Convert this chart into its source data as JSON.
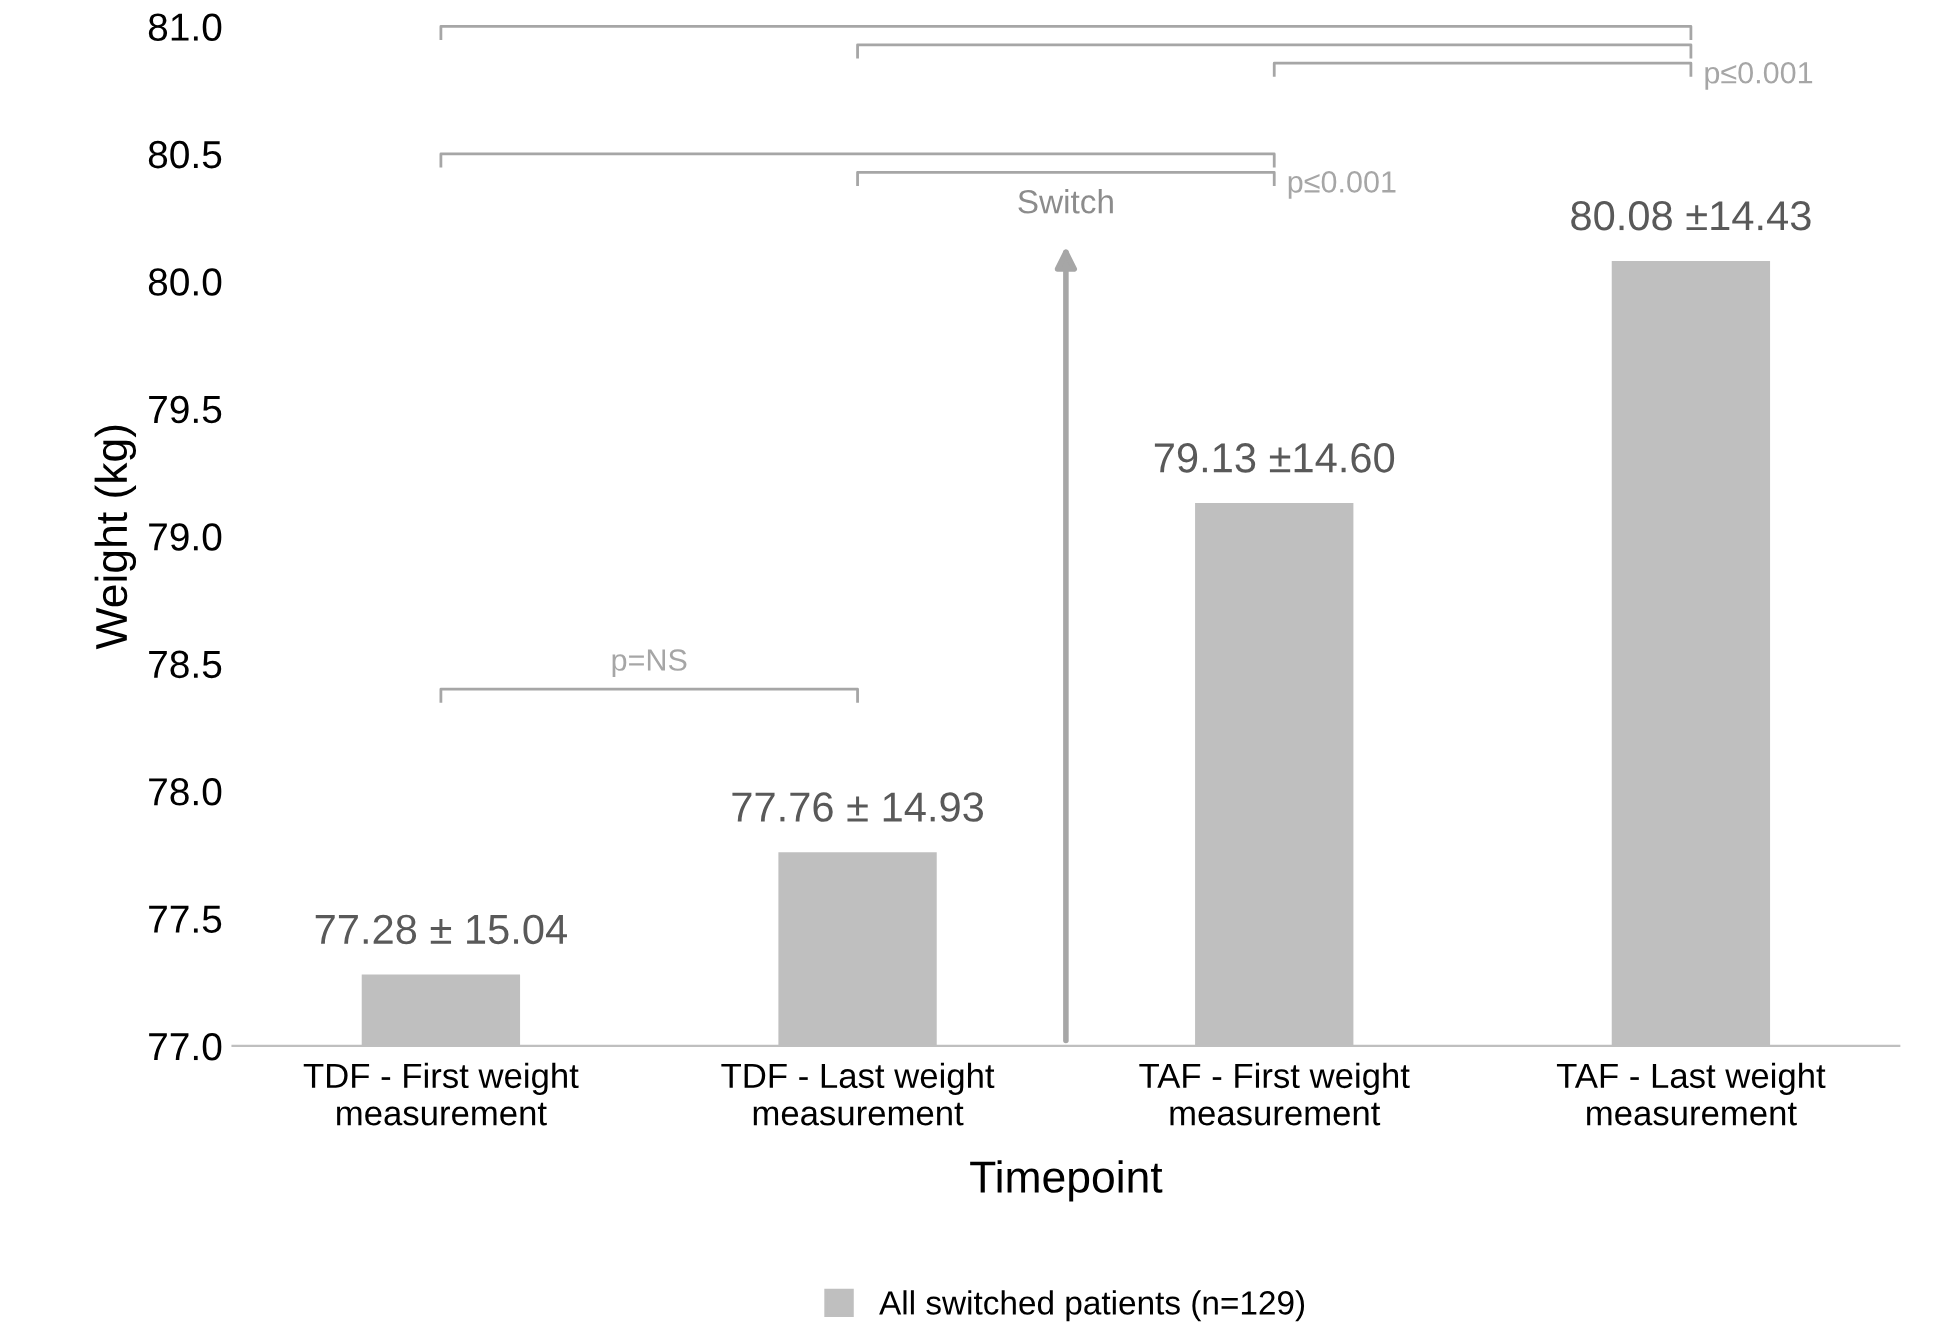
{
  "chart_data": {
    "type": "bar",
    "xlabel": "Timepoint",
    "ylabel": "Weight (kg)",
    "categories": [
      "TDF - First weight\nmeasurement",
      "TDF - Last weight\nmeasurement",
      "TAF - First weight\nmeasurement",
      "TAF - Last weight\nmeasurement"
    ],
    "series": [
      {
        "name": "All switched patients (n=129)",
        "color": "#bfbfbf",
        "values": [
          77.28,
          77.76,
          79.13,
          80.08
        ],
        "value_labels": [
          "77.28 ± 15.04",
          "77.76 ± 14.93",
          "79.13 ±14.60",
          "80.08 ±14.43"
        ]
      }
    ],
    "ylim": [
      77.0,
      81.0
    ],
    "yticks": [
      {
        "value": 77.0,
        "label": "77.0"
      },
      {
        "value": 77.5,
        "label": "77.5"
      },
      {
        "value": 78.0,
        "label": "78.0"
      },
      {
        "value": 78.5,
        "label": "78.5"
      },
      {
        "value": 79.0,
        "label": "79.0"
      },
      {
        "value": 79.5,
        "label": "79.5"
      },
      {
        "value": 80.0,
        "label": "80.0"
      },
      {
        "value": 80.5,
        "label": "80.5"
      },
      {
        "value": 81.0,
        "label": "81.0"
      }
    ],
    "annotations": [
      "p=NS",
      "p≤0.001",
      "p≤0.001",
      "Switch"
    ],
    "grid": false,
    "legend": "bottom"
  }
}
